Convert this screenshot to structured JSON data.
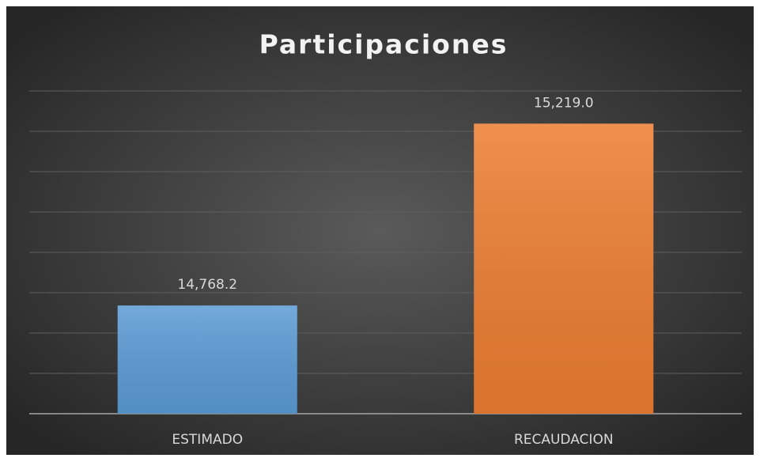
{
  "chart_data": {
    "type": "bar",
    "title": "Participaciones",
    "categories": [
      "ESTIMADO",
      "RECAUDACION"
    ],
    "series": [
      {
        "name": "Participaciones",
        "colors": [
          "#5b9bd5",
          "#ed7d31"
        ],
        "values": [
          14768.2,
          15219.0
        ],
        "value_labels": [
          "14,768.2",
          "15,219.0"
        ]
      }
    ],
    "ylim": [
      14500,
      15300
    ],
    "yticks": [
      14500,
      14600,
      14700,
      14800,
      14900,
      15000,
      15100,
      15200,
      15300
    ],
    "grid": true
  }
}
